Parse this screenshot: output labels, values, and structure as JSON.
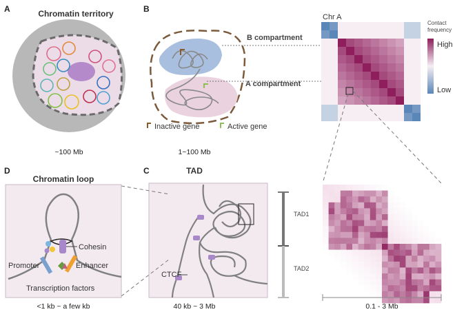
{
  "panels": {
    "A": {
      "letter": "A",
      "title": "Chromatin territory",
      "scale": "~100 Mb"
    },
    "B": {
      "letter": "B",
      "b_compartment": "B compartment",
      "a_compartment": "A compartment",
      "legend_inactive": "Inactive gene",
      "legend_active": "Active gene",
      "scale": "1~100 Mb",
      "heatmap_label": "Chr A"
    },
    "colorbar": {
      "title_line1": "Contact",
      "title_line2": "frequency",
      "high": "High",
      "low": "Low"
    },
    "C": {
      "letter": "C",
      "title": "TAD",
      "ctcf": "CTCF",
      "scale": "40 kb ~ 3 Mb",
      "tad1": "TAD1",
      "tad2": "TAD2",
      "tad_scale": "0.1 - 3 Mb"
    },
    "D": {
      "letter": "D",
      "title": "Chromatin loop",
      "cohesin": "Cohesin",
      "promoter": "Promoter",
      "enhancer": "Enhancer",
      "tf": "Transcription factors",
      "scale": "<1 kb ~ a few kb"
    }
  },
  "colors": {
    "high": "#8e1f5c",
    "mid": "#f3e0ec",
    "low": "#5b86b8",
    "inactive": "#8b5a2b",
    "active": "#8cc152",
    "panel_bg": "#f3eaf0"
  }
}
